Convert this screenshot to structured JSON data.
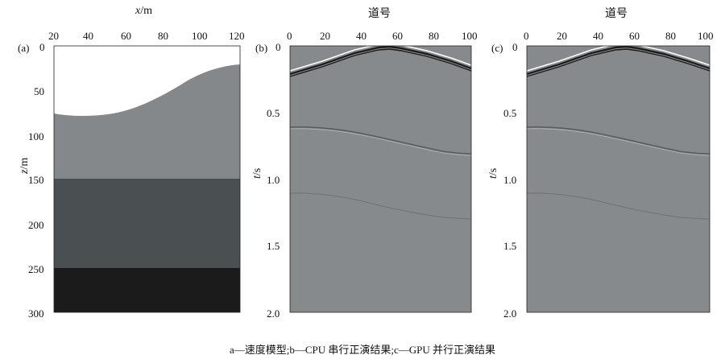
{
  "panel_a": {
    "label": "(a)",
    "xlabel_italic": "x",
    "xlabel_unit": "/m",
    "ylabel_italic": "z",
    "ylabel_unit": "/m",
    "xticks": [
      "20",
      "40",
      "60",
      "80",
      "100",
      "120"
    ],
    "yticks": [
      "0",
      "50",
      "100",
      "150",
      "200",
      "250",
      "300"
    ],
    "layer_colors": [
      "#ffffff",
      "#85888b",
      "#4a4f52",
      "#1b1b1b"
    ]
  },
  "panel_b": {
    "label": "(b)",
    "title": "道号",
    "ylabel_italic": "t",
    "ylabel_unit": "/s",
    "xticks": [
      "0",
      "20",
      "40",
      "60",
      "80",
      "100"
    ],
    "yticks": [
      "0",
      "0.5",
      "1.0",
      "1.5",
      "2.0"
    ],
    "background": "#878a8c"
  },
  "panel_c": {
    "label": "(c)",
    "title": "道号",
    "ylabel_italic": "t",
    "ylabel_unit": "/s",
    "xticks": [
      "0",
      "20",
      "40",
      "60",
      "80",
      "100"
    ],
    "yticks": [
      "0",
      "0.5",
      "1.0",
      "1.5",
      "2.0"
    ],
    "background": "#878a8c"
  },
  "caption": "a—速度模型;b—CPU 串行正演结果;c—GPU 并行正演结果"
}
